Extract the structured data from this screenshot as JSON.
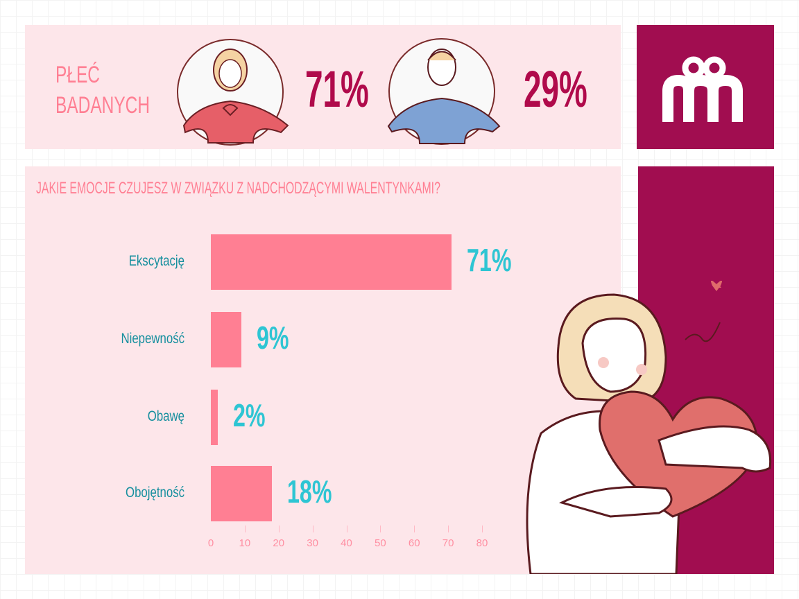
{
  "gender": {
    "title_line1": "PŁEĆ",
    "title_line2": "BADANYCH",
    "female_pct": "71%",
    "male_pct": "29%"
  },
  "colors": {
    "accent": "#a10d50",
    "panel": "#fde6ea",
    "bar": "#ff7f93",
    "value": "#2ec5d3",
    "label": "#168f9e"
  },
  "chart_data": {
    "type": "bar",
    "orientation": "horizontal",
    "title": "JAKIE EMOCJE CZUJESZ W ZWIĄZKU Z NADCHODZĄCYMI WALENTYNKAMI?",
    "categories": [
      "Ekscytację",
      "Niepewność",
      "Obawę",
      "Obojętność"
    ],
    "values": [
      71,
      9,
      2,
      18
    ],
    "data_labels": [
      "71%",
      "9%",
      "2%",
      "18%"
    ],
    "xlim": [
      0,
      80
    ],
    "xticks": [
      "0",
      "10",
      "20",
      "30",
      "40",
      "50",
      "60",
      "70",
      "80"
    ],
    "grid": false
  }
}
